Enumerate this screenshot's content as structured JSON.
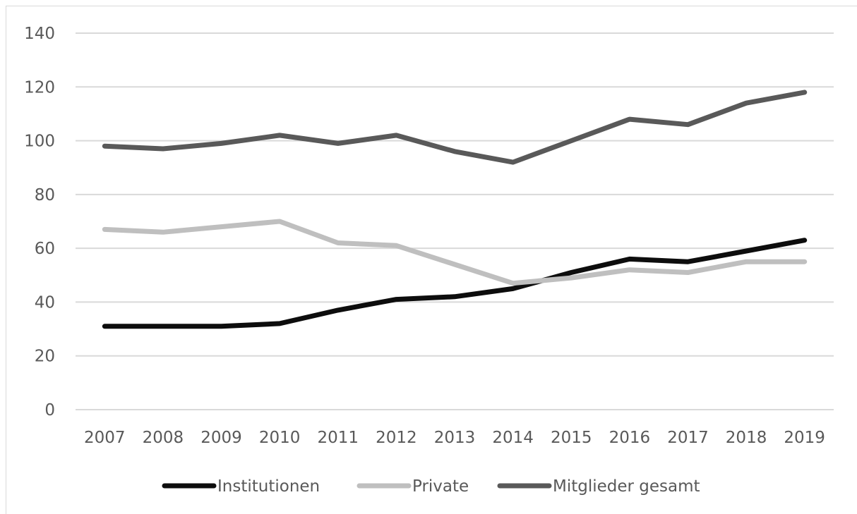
{
  "chart_data": {
    "type": "line",
    "title": "",
    "xlabel": "",
    "ylabel": "",
    "x": [
      "2007",
      "2008",
      "2009",
      "2010",
      "2011",
      "2012",
      "2013",
      "2014",
      "2015",
      "2016",
      "2017",
      "2018",
      "2019"
    ],
    "ylim": [
      0,
      140
    ],
    "yticks": [
      "0",
      "20",
      "40",
      "60",
      "80",
      "100",
      "120",
      "140"
    ],
    "grid": "horizontal",
    "legend_position": "bottom",
    "series": [
      {
        "name": "Institutionen",
        "color": "#0d0d0d",
        "values": [
          31,
          31,
          31,
          32,
          37,
          41,
          42,
          45,
          51,
          56,
          55,
          59,
          63
        ]
      },
      {
        "name": "Private",
        "color": "#bfbfbf",
        "values": [
          67,
          66,
          68,
          70,
          62,
          61,
          54,
          47,
          49,
          52,
          51,
          55,
          55
        ]
      },
      {
        "name": "Mitglieder gesamt",
        "color": "#595959",
        "values": [
          98,
          97,
          99,
          102,
          99,
          102,
          96,
          92,
          100,
          108,
          106,
          114,
          118
        ]
      }
    ]
  }
}
